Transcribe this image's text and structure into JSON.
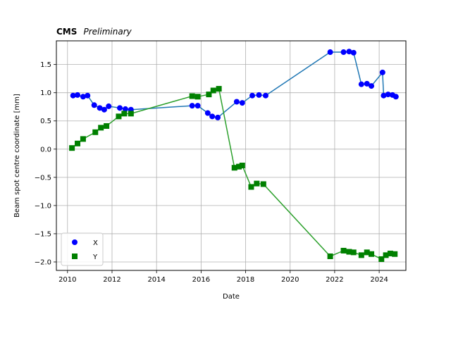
{
  "chart_data": {
    "type": "scatter",
    "title": "CMS",
    "subtitle": "Preliminary",
    "xlabel": "Date",
    "ylabel": "Beam spot centre coordinate [mm]",
    "xlim": [
      2009.5,
      2025.2
    ],
    "ylim": [
      -2.15,
      1.92
    ],
    "xticks": [
      2010,
      2012,
      2014,
      2016,
      2018,
      2020,
      2022,
      2024
    ],
    "yticks": [
      -2.0,
      -1.5,
      -1.0,
      -0.5,
      0.0,
      0.5,
      1.0,
      1.5
    ],
    "ytick_labels": [
      "−2.0",
      "−1.5",
      "−1.0",
      "−0.5",
      "0.0",
      "0.5",
      "1.0",
      "1.5"
    ],
    "grid": true,
    "legend_position": "lower-left",
    "series": [
      {
        "name": "X",
        "marker": "circle",
        "marker_color": "#0000ff",
        "line_color": "#1f77b4",
        "x": [
          2010.25,
          2010.45,
          2010.7,
          2010.9,
          2011.2,
          2011.45,
          2011.65,
          2011.85,
          2012.35,
          2012.6,
          2012.85,
          2015.6,
          2015.85,
          2016.3,
          2016.5,
          2016.75,
          2017.6,
          2017.85,
          2018.3,
          2018.6,
          2018.9,
          2021.8,
          2022.4,
          2022.65,
          2022.85,
          2023.2,
          2023.45,
          2023.65,
          2024.15,
          2024.2,
          2024.4,
          2024.6,
          2024.75
        ],
        "y": [
          0.95,
          0.96,
          0.93,
          0.95,
          0.78,
          0.73,
          0.7,
          0.76,
          0.73,
          0.71,
          0.7,
          0.77,
          0.77,
          0.64,
          0.58,
          0.56,
          0.84,
          0.82,
          0.95,
          0.96,
          0.95,
          1.72,
          1.72,
          1.73,
          1.71,
          1.15,
          1.16,
          1.12,
          1.36,
          0.95,
          0.97,
          0.96,
          0.93
        ]
      },
      {
        "name": "Y",
        "marker": "square",
        "marker_color": "#008000",
        "line_color": "#2ca02c",
        "x": [
          2010.2,
          2010.45,
          2010.7,
          2011.25,
          2011.5,
          2011.75,
          2012.3,
          2012.55,
          2012.85,
          2015.6,
          2015.85,
          2016.35,
          2016.55,
          2016.8,
          2017.5,
          2017.7,
          2017.85,
          2018.25,
          2018.5,
          2018.8,
          2021.8,
          2022.4,
          2022.65,
          2022.85,
          2023.2,
          2023.45,
          2023.65,
          2024.1,
          2024.3,
          2024.5,
          2024.7
        ],
        "y": [
          0.02,
          0.1,
          0.18,
          0.3,
          0.38,
          0.41,
          0.58,
          0.63,
          0.63,
          0.94,
          0.93,
          0.97,
          1.04,
          1.07,
          -0.33,
          -0.31,
          -0.29,
          -0.67,
          -0.61,
          -0.62,
          -1.9,
          -1.8,
          -1.82,
          -1.83,
          -1.88,
          -1.83,
          -1.86,
          -1.95,
          -1.88,
          -1.85,
          -1.86
        ]
      }
    ]
  }
}
